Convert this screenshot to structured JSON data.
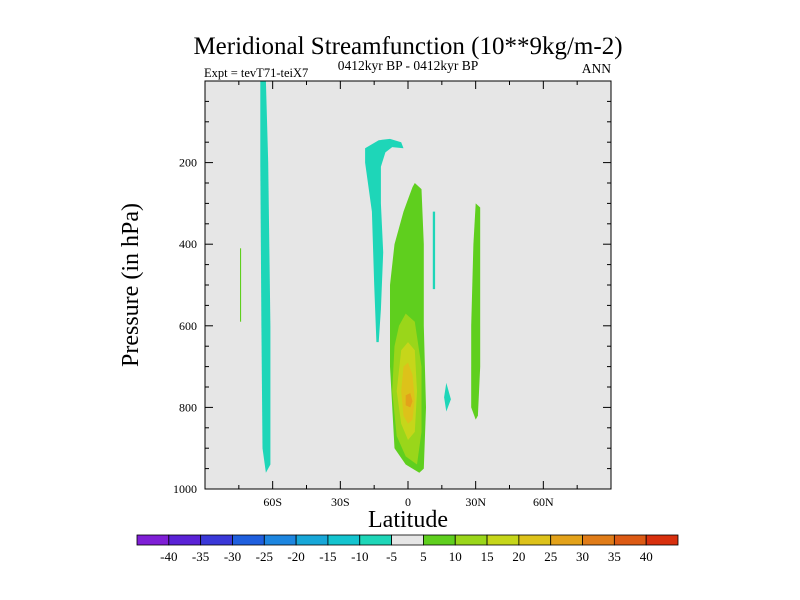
{
  "chart_data": {
    "type": "contour",
    "title": "Meridional Streamfunction (10**9kg/m-2)",
    "subtitle_left": "Expt = tevT71-teiX7",
    "subtitle_center": "0412kyr BP - 0412kyr BP",
    "subtitle_right": "ANN",
    "xlabel": "Latitude",
    "ylabel": "Pressure (in hPa)",
    "xlim": [
      -90,
      90
    ],
    "ylim": [
      1000,
      0
    ],
    "x_ticks": [
      {
        "value": -60,
        "label": "60S"
      },
      {
        "value": -30,
        "label": "30S"
      },
      {
        "value": 0,
        "label": "0"
      },
      {
        "value": 30,
        "label": "30N"
      },
      {
        "value": 60,
        "label": "60N"
      }
    ],
    "y_ticks": [
      {
        "value": 200,
        "label": "200"
      },
      {
        "value": 400,
        "label": "400"
      },
      {
        "value": 600,
        "label": "600"
      },
      {
        "value": 800,
        "label": "800"
      },
      {
        "value": 1000,
        "label": "1000"
      }
    ],
    "background_color": "#e6e6e6",
    "contour_levels": [
      -40,
      -35,
      -30,
      -25,
      -20,
      -15,
      -10,
      -5,
      5,
      10,
      15,
      20,
      25,
      30,
      35,
      40
    ],
    "colorbar_colors": [
      "#7f1fd6",
      "#5a22d6",
      "#3a38d8",
      "#1f5fde",
      "#1d86e0",
      "#17a7d8",
      "#14c4cf",
      "#1ed6b8",
      "#e6e6e6",
      "#5fcf1e",
      "#9ad61a",
      "#c6d61a",
      "#ddc21a",
      "#e3a21a",
      "#e07c18",
      "#dc5a14",
      "#d8300e"
    ],
    "regions": [
      {
        "level_range": [
          -10,
          -5
        ],
        "color": "#1ed6b8",
        "polygon": [
          [
            -65.5,
            0
          ],
          [
            -63,
            0
          ],
          [
            -62,
            200
          ],
          [
            -61,
            600
          ],
          [
            -61,
            940
          ],
          [
            -63,
            960
          ],
          [
            -64.5,
            900
          ],
          [
            -65,
            600
          ],
          [
            -65.5,
            200
          ]
        ]
      },
      {
        "level_range": [
          5,
          10
        ],
        "color": "#5fcf1e",
        "polygon": [
          [
            -74.5,
            410
          ],
          [
            -74,
            410
          ],
          [
            -74,
            590
          ],
          [
            -74.5,
            590
          ]
        ]
      },
      {
        "level_range": [
          -10,
          -5
        ],
        "color": "#1ed6b8",
        "polygon": [
          [
            -19,
            165
          ],
          [
            -13,
            145
          ],
          [
            -8,
            142
          ],
          [
            -3,
            150
          ],
          [
            -2,
            165
          ],
          [
            -7,
            162
          ],
          [
            -10,
            175
          ],
          [
            -12,
            210
          ],
          [
            -12,
            300
          ],
          [
            -11,
            420
          ],
          [
            -12,
            560
          ],
          [
            -13,
            640
          ],
          [
            -14,
            640
          ],
          [
            -15,
            500
          ],
          [
            -16,
            320
          ],
          [
            -19,
            200
          ]
        ]
      },
      {
        "level_range": [
          -10,
          -5
        ],
        "color": "#1ed6b8",
        "polygon": [
          [
            11,
            320
          ],
          [
            12,
            320
          ],
          [
            12,
            510
          ],
          [
            11,
            510
          ]
        ]
      },
      {
        "level_range": [
          -10,
          -5
        ],
        "color": "#1ed6b8",
        "polygon": [
          [
            17,
            740
          ],
          [
            19,
            780
          ],
          [
            17,
            810
          ],
          [
            16,
            775
          ]
        ]
      },
      {
        "level_range": [
          5,
          10
        ],
        "color": "#5fcf1e",
        "polygon": [
          [
            3,
            250
          ],
          [
            6,
            265
          ],
          [
            7,
            400
          ],
          [
            7,
            600
          ],
          [
            8,
            800
          ],
          [
            7,
            950
          ],
          [
            5,
            960
          ],
          [
            -1,
            940
          ],
          [
            -6,
            900
          ],
          [
            -8,
            700
          ],
          [
            -8,
            500
          ],
          [
            -6,
            400
          ],
          [
            -2,
            320
          ],
          [
            0,
            290
          ],
          [
            2,
            260
          ]
        ]
      },
      {
        "level_range": [
          10,
          15
        ],
        "color": "#9ad61a",
        "polygon": [
          [
            -4,
            600
          ],
          [
            -1,
            570
          ],
          [
            3,
            590
          ],
          [
            6,
            700
          ],
          [
            6,
            860
          ],
          [
            4,
            940
          ],
          [
            -1,
            920
          ],
          [
            -5,
            870
          ],
          [
            -7,
            760
          ],
          [
            -6,
            650
          ]
        ]
      },
      {
        "level_range": [
          15,
          20
        ],
        "color": "#c6d61a",
        "polygon": [
          [
            -3,
            660
          ],
          [
            0,
            640
          ],
          [
            3,
            660
          ],
          [
            4,
            760
          ],
          [
            3,
            860
          ],
          [
            0,
            880
          ],
          [
            -3,
            840
          ],
          [
            -5,
            760
          ]
        ]
      },
      {
        "level_range": [
          20,
          25
        ],
        "color": "#ddc21a",
        "polygon": [
          [
            -2,
            700
          ],
          [
            0,
            690
          ],
          [
            2,
            720
          ],
          [
            3,
            780
          ],
          [
            2,
            830
          ],
          [
            0,
            840
          ],
          [
            -2,
            820
          ],
          [
            -3,
            760
          ]
        ]
      },
      {
        "level_range": [
          25,
          30
        ],
        "color": "#e3a21a",
        "polygon": [
          [
            -1,
            770
          ],
          [
            1,
            765
          ],
          [
            2,
            785
          ],
          [
            1,
            800
          ],
          [
            -1,
            795
          ]
        ]
      },
      {
        "level_range": [
          5,
          10
        ],
        "color": "#5fcf1e",
        "polygon": [
          [
            30,
            300
          ],
          [
            32,
            310
          ],
          [
            32,
            500
          ],
          [
            32,
            700
          ],
          [
            31,
            820
          ],
          [
            30,
            830
          ],
          [
            28,
            800
          ],
          [
            28,
            600
          ],
          [
            29,
            400
          ]
        ]
      }
    ]
  }
}
